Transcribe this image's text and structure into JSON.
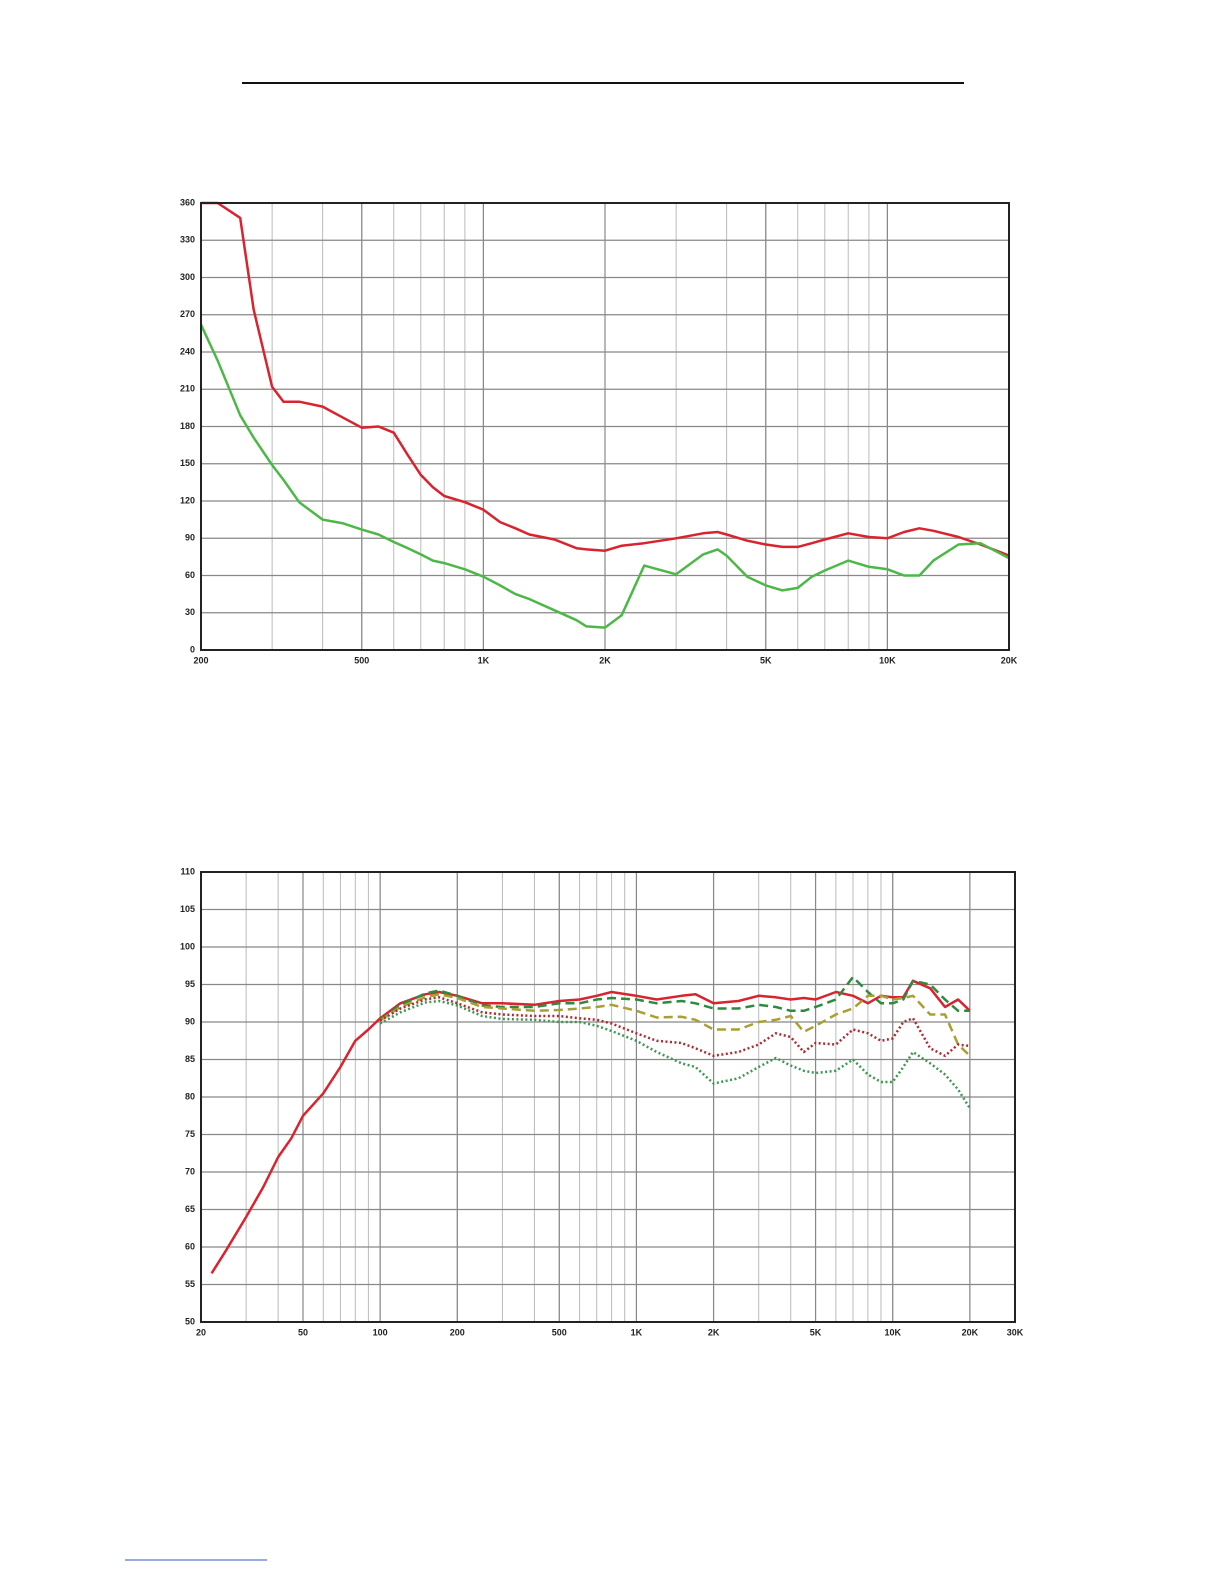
{
  "chart_data": [
    {
      "type": "line",
      "xscale": "log",
      "grid": true,
      "minor_grid": true,
      "x": [
        200,
        220,
        250,
        270,
        300,
        320,
        350,
        400,
        450,
        500,
        550,
        600,
        650,
        700,
        750,
        800,
        900,
        1000,
        1100,
        1200,
        1300,
        1500,
        1700,
        1800,
        2000,
        2200,
        2500,
        3000,
        3500,
        3800,
        4000,
        4500,
        5000,
        5500,
        6000,
        6500,
        7000,
        8000,
        9000,
        10000,
        11000,
        12000,
        13000,
        15000,
        17000,
        20000
      ],
      "series": [
        {
          "color": "#d9232e",
          "style": "solid",
          "values": [
            360,
            360,
            348,
            274,
            212,
            200,
            200,
            196,
            187,
            179,
            180,
            175,
            157,
            141,
            131,
            124,
            119,
            113,
            103,
            98,
            93,
            89,
            82,
            81,
            80,
            84,
            86,
            90,
            94,
            95,
            93,
            88,
            85,
            83,
            83,
            86,
            89,
            94,
            91,
            90,
            95,
            98,
            96,
            91,
            85,
            76
          ]
        },
        {
          "color": "#4db848",
          "style": "solid",
          "values": [
            262,
            233,
            189,
            171,
            149,
            137,
            119,
            105,
            102,
            97,
            93,
            87,
            82,
            77,
            72,
            70,
            65,
            59,
            52,
            45,
            41,
            32,
            24,
            19,
            18,
            28,
            68,
            61,
            77,
            81,
            76,
            59,
            52,
            48,
            50,
            59,
            64,
            72,
            67,
            65,
            60,
            60,
            72,
            85,
            86,
            74
          ]
        }
      ],
      "xlim": [
        200,
        20000
      ],
      "xticks": [
        200,
        500,
        {
          "value": 1000,
          "label": "1K"
        },
        {
          "value": 2000,
          "label": "2K"
        },
        {
          "value": 5000,
          "label": "5K"
        },
        {
          "value": 10000,
          "label": "10K"
        },
        {
          "value": 20000,
          "label": "20K"
        }
      ],
      "ylim": [
        0,
        360
      ],
      "yticks": [
        0,
        30,
        60,
        90,
        120,
        150,
        180,
        210,
        240,
        270,
        300,
        330,
        360
      ]
    },
    {
      "type": "line",
      "xscale": "log",
      "grid": true,
      "minor_grid": true,
      "x": [
        22,
        25,
        30,
        35,
        40,
        45,
        50,
        60,
        70,
        80,
        90,
        100,
        120,
        150,
        170,
        200,
        250,
        300,
        400,
        500,
        600,
        700,
        800,
        1000,
        1200,
        1500,
        1700,
        2000,
        2500,
        3000,
        3500,
        4000,
        4500,
        5000,
        6000,
        7000,
        8000,
        9000,
        10000,
        11000,
        12000,
        14000,
        16000,
        18000,
        20000
      ],
      "series": [
        {
          "color": "#d9232e",
          "style": "solid",
          "values": [
            56.5,
            59.5,
            64,
            68,
            72,
            74.5,
            77.5,
            80.5,
            84,
            87.5,
            89,
            90.5,
            92.5,
            93.7,
            94,
            93.5,
            92.5,
            92.5,
            92.3,
            92.8,
            93,
            93.5,
            94,
            93.5,
            93,
            93.5,
            93.7,
            92.5,
            92.8,
            93.5,
            93.3,
            93,
            93.2,
            93,
            94,
            93.5,
            92.5,
            93.5,
            93.3,
            93.3,
            95.5,
            94.5,
            92,
            93,
            91.5
          ]
        },
        {
          "color": "#2e8b3e",
          "style": "dashed",
          "values": [
            null,
            null,
            null,
            null,
            null,
            null,
            null,
            null,
            null,
            null,
            null,
            90.3,
            92.3,
            93.8,
            94.2,
            93.5,
            92.2,
            92,
            92,
            92.5,
            92.5,
            93,
            93.2,
            93,
            92.5,
            92.8,
            92.5,
            91.8,
            91.8,
            92.3,
            92,
            91.5,
            91.5,
            92,
            93,
            96,
            94,
            92.5,
            92.5,
            93,
            95.5,
            95,
            93,
            91.5,
            91.5
          ]
        },
        {
          "color": "#a8a032",
          "style": "dashed",
          "values": [
            null,
            null,
            null,
            null,
            null,
            null,
            null,
            null,
            null,
            null,
            null,
            90.2,
            92,
            93.3,
            93.7,
            93.2,
            92,
            91.8,
            91.5,
            91.6,
            91.8,
            92,
            92.3,
            91.5,
            90.6,
            90.7,
            90.3,
            89,
            89,
            90,
            90.3,
            90.8,
            88.7,
            89.5,
            91,
            91.8,
            93.5,
            93.5,
            93,
            93.2,
            93.5,
            91,
            91,
            87,
            85.5
          ]
        },
        {
          "color": "#b02a30",
          "style": "dotted",
          "values": [
            null,
            null,
            null,
            null,
            null,
            null,
            null,
            null,
            null,
            null,
            null,
            90.2,
            91.8,
            93,
            93.3,
            92.5,
            91.3,
            91,
            90.8,
            90.8,
            90.5,
            90.3,
            89.8,
            88.5,
            87.5,
            87.2,
            86.5,
            85.5,
            86,
            87,
            88.5,
            88,
            86,
            87.2,
            87,
            89,
            88.5,
            87.5,
            87.8,
            90,
            90.5,
            86.5,
            85.5,
            87,
            86.8
          ]
        },
        {
          "color": "#3a9a50",
          "style": "dotted",
          "values": [
            null,
            null,
            null,
            null,
            null,
            null,
            null,
            null,
            null,
            null,
            null,
            89.8,
            91.3,
            92.6,
            92.8,
            92.2,
            90.8,
            90.4,
            90.3,
            90,
            90,
            89.5,
            88.8,
            87.5,
            86,
            84.5,
            84,
            81.8,
            82.5,
            84,
            85.2,
            84.2,
            83.5,
            83.2,
            83.5,
            85,
            83,
            82,
            82,
            84,
            86,
            84.5,
            83,
            81,
            78.5
          ]
        }
      ],
      "xlim": [
        20,
        30000
      ],
      "xticks": [
        20,
        50,
        100,
        200,
        500,
        {
          "value": 1000,
          "label": "1K"
        },
        {
          "value": 2000,
          "label": "2K"
        },
        {
          "value": 5000,
          "label": "5K"
        },
        {
          "value": 10000,
          "label": "10K"
        },
        {
          "value": 20000,
          "label": "20K"
        },
        {
          "value": 30000,
          "label": "30K"
        }
      ],
      "ylim": [
        50,
        110
      ],
      "yticks": [
        50,
        55,
        60,
        65,
        70,
        75,
        80,
        85,
        90,
        95,
        100,
        105,
        110
      ]
    }
  ]
}
